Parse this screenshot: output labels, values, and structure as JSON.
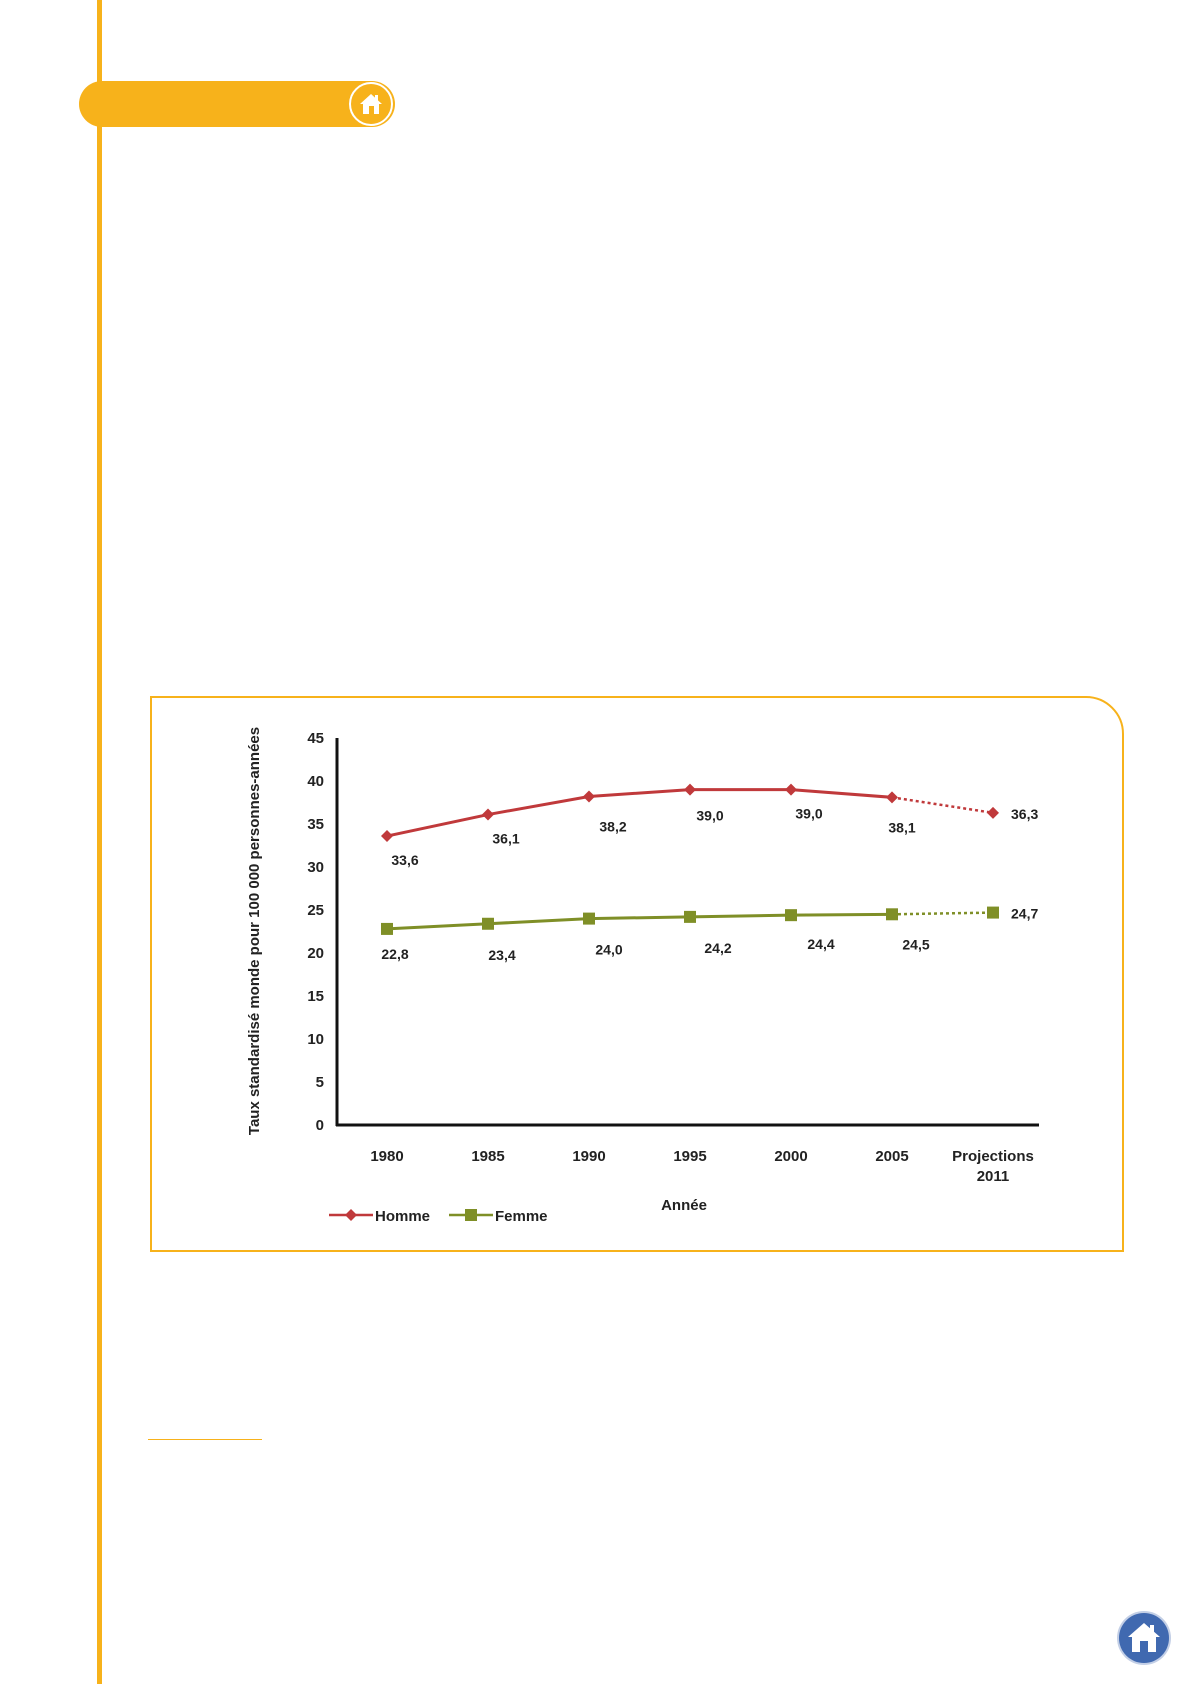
{
  "chart_data": {
    "type": "line",
    "categories": [
      "1980",
      "1985",
      "1990",
      "1995",
      "2000",
      "2005",
      "Projections 2011"
    ],
    "series": [
      {
        "name": "Homme",
        "values": [
          33.6,
          36.1,
          38.2,
          39.0,
          39.0,
          38.1,
          36.3
        ],
        "labels": [
          "33,6",
          "36,1",
          "38,2",
          "39,0",
          "39,0",
          "38,1",
          "36,3"
        ],
        "color": "#c0393b",
        "marker": "diamond",
        "projection_dashed": true
      },
      {
        "name": "Femme",
        "values": [
          22.8,
          23.4,
          24.0,
          24.2,
          24.4,
          24.5,
          24.7
        ],
        "labels": [
          "22,8",
          "23,4",
          "24,0",
          "24,2",
          "24,4",
          "24,5",
          "24,7"
        ],
        "color": "#7f8f27",
        "marker": "square",
        "projection_dashed": true
      }
    ],
    "xlabel": "Année",
    "ylabel": "Taux standardisé monde pour 100 000 personnes-années",
    "ylim": [
      0,
      45
    ],
    "yticks": [
      0,
      5,
      10,
      15,
      20,
      25,
      30,
      35,
      40,
      45
    ],
    "grid": false,
    "legend_position": "bottom-left"
  },
  "icons": {
    "tab_icon": "home-icon",
    "nav_icon": "home-icon"
  },
  "colors": {
    "accent": "#f7b21b",
    "nav_button": "#4069b0"
  }
}
